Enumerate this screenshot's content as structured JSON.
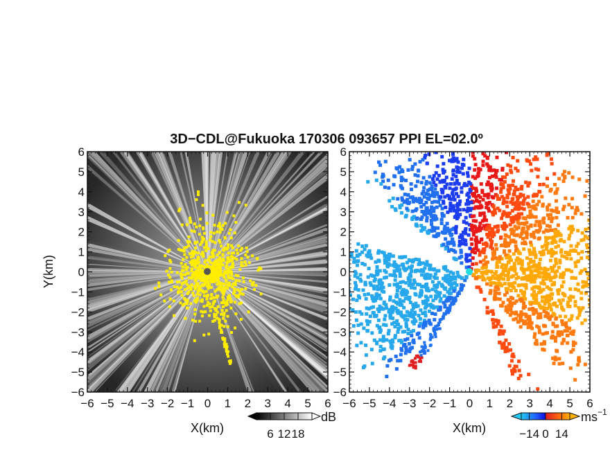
{
  "figure": {
    "title": "3D−CDL@Fukuoka 170306 093657 PPI EL=02.0º"
  },
  "chart_data": [
    {
      "type": "heatmap",
      "panel": "left",
      "quantity": "SNR",
      "xlabel": "X(km)",
      "ylabel": "Y(km)",
      "xlim": [
        -6,
        6
      ],
      "ylim": [
        -6,
        6
      ],
      "xticks": [
        "−6",
        "−5",
        "−4",
        "−3",
        "−2",
        "−1",
        "0",
        "1",
        "2",
        "3",
        "4",
        "5",
        "6"
      ],
      "yticks": [
        "−6",
        "−5",
        "−4",
        "−3",
        "−2",
        "−1",
        "0",
        "1",
        "2",
        "3",
        "4",
        "5",
        "6"
      ],
      "radar_origin": [
        0,
        0
      ],
      "overlay_color": "#ffee00",
      "colorbar": {
        "unit": "dB",
        "ticks": [
          "6",
          "12",
          "18"
        ],
        "range": [
          0,
          24
        ],
        "colors": [
          "#000000",
          "#ffffff"
        ]
      }
    },
    {
      "type": "heatmap",
      "panel": "right",
      "quantity": "Doppler velocity",
      "xlabel": "X(km)",
      "ylabel": "",
      "xlim": [
        -6,
        6
      ],
      "ylim": [
        -6,
        6
      ],
      "xticks": [
        "−6",
        "−5",
        "−4",
        "−3",
        "−2",
        "−1",
        "0",
        "1",
        "2",
        "3",
        "4",
        "5",
        "6"
      ],
      "yticks": [
        "−6",
        "−5",
        "−4",
        "−3",
        "−2",
        "−1",
        "0",
        "1",
        "2",
        "3",
        "4",
        "5",
        "6"
      ],
      "radar_origin": [
        0,
        0
      ],
      "origin_color": "#22dddd",
      "colorbar": {
        "unit": "ms",
        "unit_exp": "−1",
        "ticks": [
          "−14",
          "0",
          "14"
        ],
        "range": [
          -21,
          21
        ],
        "colors": [
          "#22c8f0",
          "#2060ff",
          "#1010e0",
          "#e02020",
          "#ff6010",
          "#ffb000"
        ]
      }
    }
  ]
}
